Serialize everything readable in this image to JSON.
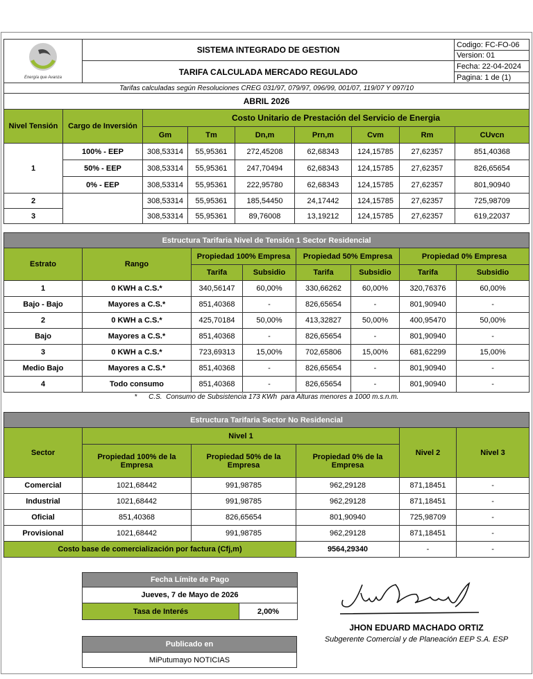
{
  "header": {
    "title1": "SISTEMA INTEGRADO DE GESTION",
    "title2": "TARIFA CALCULADA MERCADO REGULADO",
    "codigo": "Codigo:  FC-FO-06",
    "version": "Version: 01",
    "fecha": "Fecha:   22-04-2024",
    "pagina": "Pagina:   1 de (1)",
    "logo_text": "EMPRESA DE ENERGIA",
    "slogan": "Energía que Avanza",
    "resoluciones": "Tarifas calculadas según Resoluciones CREG 031/97, 079/97, 096/99, 001/07, 119/07 Y 097/10",
    "period": "ABRIL 2026"
  },
  "cu": {
    "h_nivel": "Nivel Tensión",
    "h_cargo": "Cargo de Inversión",
    "h_group": "Costo Unitario de Prestación del Servicio de Energia",
    "cols": [
      "Gm",
      "Tm",
      "Dn,m",
      "Prn,m",
      "Cvm",
      "Rm",
      "CUvcn"
    ],
    "rows": [
      {
        "nivel": "1",
        "cargo": "100% - EEP",
        "v": [
          "308,53314",
          "55,95361",
          "272,45208",
          "62,68343",
          "124,15785",
          "27,62357",
          "851,40368"
        ]
      },
      {
        "nivel": "",
        "cargo": "50% - EEP",
        "v": [
          "308,53314",
          "55,95361",
          "247,70494",
          "62,68343",
          "124,15785",
          "27,62357",
          "826,65654"
        ]
      },
      {
        "nivel": "",
        "cargo": "0% - EEP",
        "v": [
          "308,53314",
          "55,95361",
          "222,95780",
          "62,68343",
          "124,15785",
          "27,62357",
          "801,90940"
        ]
      },
      {
        "nivel": "2",
        "cargo": "",
        "v": [
          "308,53314",
          "55,95361",
          "185,54450",
          "24,17442",
          "124,15785",
          "27,62357",
          "725,98709"
        ]
      },
      {
        "nivel": "3",
        "cargo": "",
        "v": [
          "308,53314",
          "55,95361",
          "89,76008",
          "13,19212",
          "124,15785",
          "27,62357",
          "619,22037"
        ]
      }
    ]
  },
  "res": {
    "title": "Estructura Tarifaria Nivel de Tensión 1 Sector Residencial",
    "h_estrato": "Estrato",
    "h_rango": "Rango",
    "groups": [
      "Propiedad 100% Empresa",
      "Propiedad 50% Empresa",
      "Propiedad 0% Empresa"
    ],
    "h_tarifa": "Tarifa",
    "h_subsidio": "Subsidio",
    "rows": [
      {
        "estrato": "1",
        "rango": "0 KWH a C.S.*",
        "v": [
          "340,56147",
          "60,00%",
          "330,66262",
          "60,00%",
          "320,76376",
          "60,00%"
        ]
      },
      {
        "estrato": "Bajo - Bajo",
        "rango": "Mayores a C.S.*",
        "v": [
          "851,40368",
          "-",
          "826,65654",
          "-",
          "801,90940",
          "-"
        ]
      },
      {
        "estrato": "2",
        "rango": "0 KWH a C.S.*",
        "v": [
          "425,70184",
          "50,00%",
          "413,32827",
          "50,00%",
          "400,95470",
          "50,00%"
        ]
      },
      {
        "estrato": "Bajo",
        "rango": "Mayores a C.S.*",
        "v": [
          "851,40368",
          "-",
          "826,65654",
          "-",
          "801,90940",
          "-"
        ]
      },
      {
        "estrato": "3",
        "rango": "0 KWH a C.S.*",
        "v": [
          "723,69313",
          "15,00%",
          "702,65806",
          "15,00%",
          "681,62299",
          "15,00%"
        ]
      },
      {
        "estrato": "Medio Bajo",
        "rango": "Mayores a C.S.*",
        "v": [
          "851,40368",
          "-",
          "826,65654",
          "-",
          "801,90940",
          "-"
        ]
      },
      {
        "estrato": "4",
        "rango": "Todo consumo",
        "v": [
          "851,40368",
          "-",
          "826,65654",
          "-",
          "801,90940",
          "-"
        ]
      }
    ],
    "footnote": "*      C.S.  Consumo de Subsistencia 173 KWh  para Alturas menores a 1000 m.s.n.m."
  },
  "nores": {
    "title": "Estructura Tarifaria Sector No Residencial",
    "h_sector": "Sector",
    "h_nivel1": "Nivel 1",
    "h_p100": "Propiedad 100% de la Empresa",
    "h_p50": "Propiedad 50% de la Empresa",
    "h_p0": "Propiedad 0% de la Empresa",
    "h_nivel2": "Nivel 2",
    "h_nivel3": "Nivel 3",
    "rows": [
      {
        "sector": "Comercial",
        "v": [
          "1021,68442",
          "991,98785",
          "962,29128",
          "871,18451",
          "-"
        ]
      },
      {
        "sector": "Industrial",
        "v": [
          "1021,68442",
          "991,98785",
          "962,29128",
          "871,18451",
          "-"
        ]
      },
      {
        "sector": "Oficial",
        "v": [
          "851,40368",
          "826,65654",
          "801,90940",
          "725,98709",
          "-"
        ]
      },
      {
        "sector": "Provisional",
        "v": [
          "1021,68442",
          "991,98785",
          "962,29128",
          "871,18451",
          "-"
        ]
      }
    ],
    "base_label": "Costo base de comercialización por factura (Cfj,m)",
    "base_value": "9564,29340",
    "base_n2": "-",
    "base_n3": "-"
  },
  "pago": {
    "title": "Fecha Límite de Pago",
    "date": "Jueves, 7 de Mayo de 2026",
    "tasa_label": "Tasa de Interés",
    "tasa_value": "2,00%"
  },
  "pub": {
    "title": "Publicado en",
    "value": "MiPutumayo NOTICIAS"
  },
  "signer": {
    "name": "JHON EDUARD MACHADO ORTIZ",
    "role": "Subgerente Comercial y de Planeación EEP S.A. ESP"
  }
}
